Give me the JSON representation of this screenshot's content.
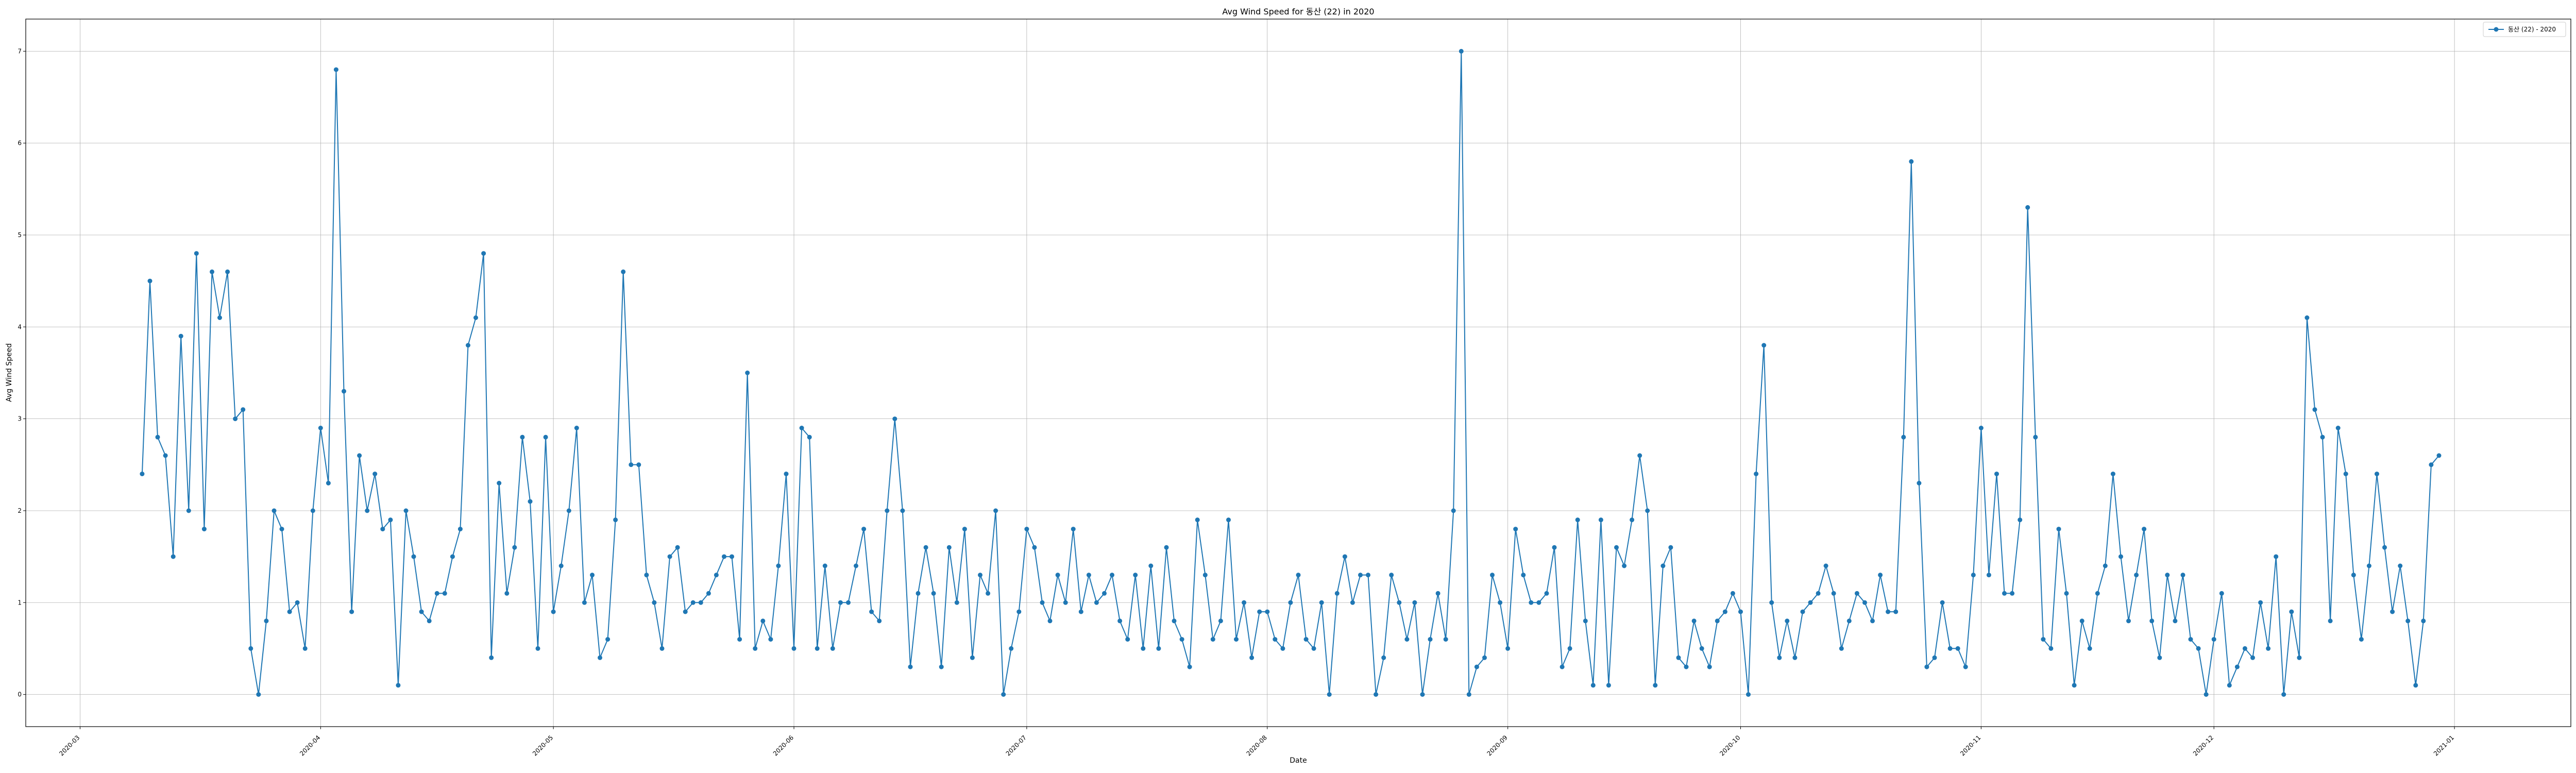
{
  "chart_data": {
    "type": "line",
    "title": "Avg Wind Speed for 동산 (22) in 2020",
    "xlabel": "Date",
    "ylabel": "Avg Wind Speed",
    "x_start": "2020-03-09",
    "x_step_days": 1,
    "x_range": [
      "2020-02-23",
      "2021-01-16"
    ],
    "ylim": [
      -0.35,
      7.35
    ],
    "yticks": [
      0,
      1,
      2,
      3,
      4,
      5,
      6,
      7
    ],
    "xticks": [
      "2020-03",
      "2020-04",
      "2020-05",
      "2020-06",
      "2020-07",
      "2020-08",
      "2020-09",
      "2020-10",
      "2020-11",
      "2020-12",
      "2021-01"
    ],
    "grid": true,
    "legend_position": "top-right",
    "colors": {
      "line": "#1f77b4"
    },
    "series": [
      {
        "name": "동산 (22) - 2020",
        "values": [
          2.4,
          4.5,
          2.8,
          2.6,
          1.5,
          3.9,
          2.0,
          4.8,
          1.8,
          4.6,
          4.1,
          4.6,
          3.0,
          3.1,
          0.5,
          0.0,
          0.8,
          2.0,
          1.8,
          0.9,
          1.0,
          0.5,
          2.0,
          2.9,
          2.3,
          6.8,
          3.3,
          0.9,
          2.6,
          2.0,
          2.4,
          1.8,
          1.9,
          0.1,
          2.0,
          1.5,
          0.9,
          0.8,
          1.1,
          1.1,
          1.5,
          1.8,
          3.8,
          4.1,
          4.8,
          0.4,
          2.3,
          1.1,
          1.6,
          2.8,
          2.1,
          0.5,
          2.8,
          0.9,
          1.4,
          2.0,
          2.9,
          1.0,
          1.3,
          0.4,
          0.6,
          1.9,
          4.6,
          2.5,
          2.5,
          1.3,
          1.0,
          0.5,
          1.5,
          1.6,
          0.9,
          1.0,
          1.0,
          1.1,
          1.3,
          1.5,
          1.5,
          0.6,
          3.5,
          0.5,
          0.8,
          0.6,
          1.4,
          2.4,
          0.5,
          2.9,
          2.8,
          0.5,
          1.4,
          0.5,
          1.0,
          1.0,
          1.4,
          1.8,
          0.9,
          0.8,
          2.0,
          3.0,
          2.0,
          0.3,
          1.1,
          1.6,
          1.1,
          0.3,
          1.6,
          1.0,
          1.8,
          0.4,
          1.3,
          1.1,
          2.0,
          0.0,
          0.5,
          0.9,
          1.8,
          1.6,
          1.0,
          0.8,
          1.3,
          1.0,
          1.8,
          0.9,
          1.3,
          1.0,
          1.1,
          1.3,
          0.8,
          0.6,
          1.3,
          0.5,
          1.4,
          0.5,
          1.6,
          0.8,
          0.6,
          0.3,
          1.9,
          1.3,
          0.6,
          0.8,
          1.9,
          0.6,
          1.0,
          0.4,
          0.9,
          0.9,
          0.6,
          0.5,
          1.0,
          1.3,
          0.6,
          0.5,
          1.0,
          0.0,
          1.1,
          1.5,
          1.0,
          1.3,
          1.3,
          0.0,
          0.4,
          1.3,
          1.0,
          0.6,
          1.0,
          0.0,
          0.6,
          1.1,
          0.6,
          2.0,
          7.0,
          0.0,
          0.3,
          0.4,
          1.3,
          1.0,
          0.5,
          1.8,
          1.3,
          1.0,
          1.0,
          1.1,
          1.6,
          0.3,
          0.5,
          1.9,
          0.8,
          0.1,
          1.9,
          0.1,
          1.6,
          1.4,
          1.9,
          2.6,
          2.0,
          0.1,
          1.4,
          1.6,
          0.4,
          0.3,
          0.8,
          0.5,
          0.3,
          0.8,
          0.9,
          1.1,
          0.9,
          0.0,
          2.4,
          3.8,
          1.0,
          0.4,
          0.8,
          0.4,
          0.9,
          1.0,
          1.1,
          1.4,
          1.1,
          0.5,
          0.8,
          1.1,
          1.0,
          0.8,
          1.3,
          0.9,
          0.9,
          2.8,
          5.8,
          2.3,
          0.3,
          0.4,
          1.0,
          0.5,
          0.5,
          0.3,
          1.3,
          2.9,
          1.3,
          2.4,
          1.1,
          1.1,
          1.9,
          5.3,
          2.8,
          0.6,
          0.5,
          1.8,
          1.1,
          0.1,
          0.8,
          0.5,
          1.1,
          1.4,
          2.4,
          1.5,
          0.8,
          1.3,
          1.8,
          0.8,
          0.4,
          1.3,
          0.8,
          1.3,
          0.6,
          0.5,
          0.0,
          0.6,
          1.1,
          0.1,
          0.3,
          0.5,
          0.4,
          1.0,
          0.5,
          1.5,
          0.0,
          0.9,
          0.4,
          4.1,
          3.1,
          2.8,
          0.8,
          2.9,
          2.4,
          1.3,
          0.6,
          1.4,
          2.4,
          1.6,
          0.9,
          1.4,
          0.8,
          0.1,
          0.8,
          2.5,
          2.6
        ]
      }
    ]
  }
}
